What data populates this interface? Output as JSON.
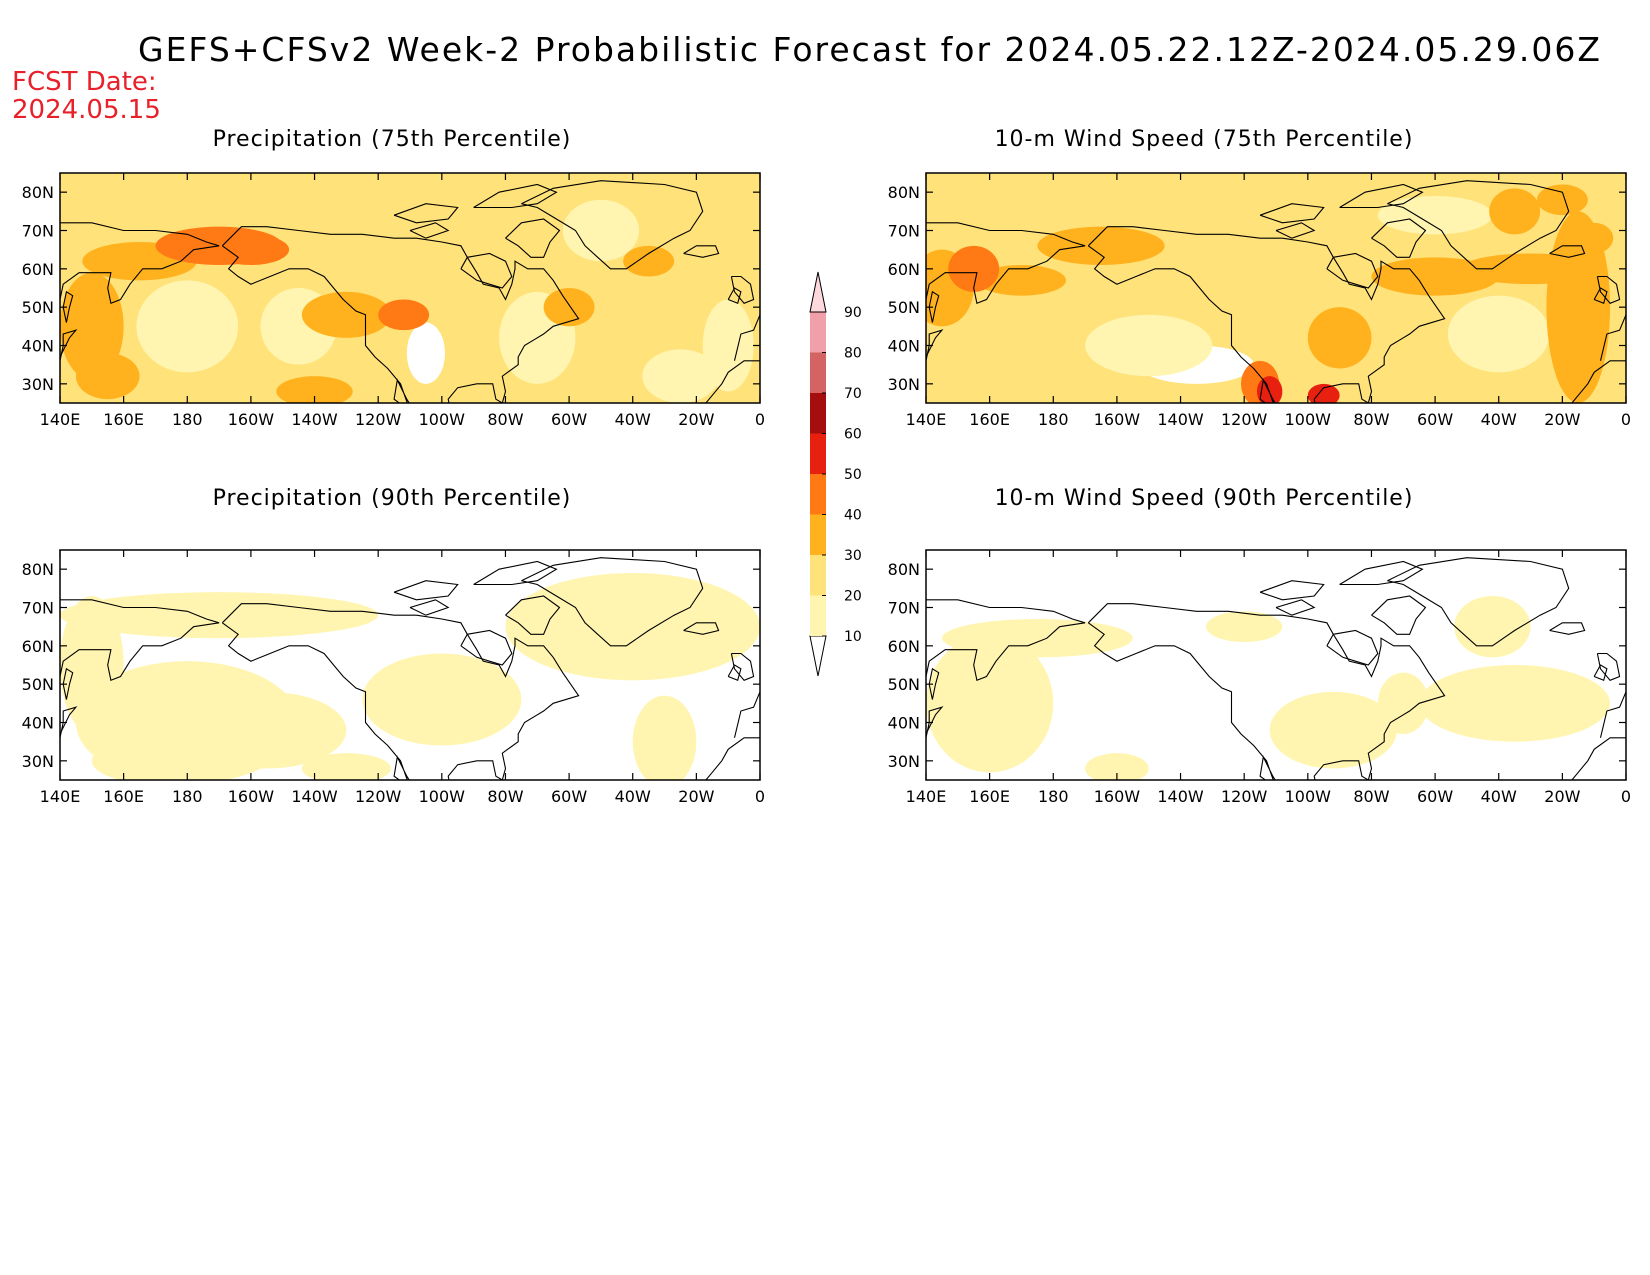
{
  "header": {
    "title": "GEFS+CFSv2 Week-2 Probabilistic Forecast for 2024.05.22.12Z-2024.05.29.06Z",
    "fcst_label": "FCST Date:",
    "fcst_date": "2024.05.15"
  },
  "panels": [
    {
      "title": "Precipitation (75th Percentile)",
      "field": "precip75"
    },
    {
      "title": "10-m Wind Speed (75th Percentile)",
      "field": "wind75"
    },
    {
      "title": "Precipitation (90th Percentile)",
      "field": "precip90"
    },
    {
      "title": "10-m Wind Speed (90th Percentile)",
      "field": "wind90"
    }
  ],
  "axes": {
    "lat_labels": [
      "30N",
      "40N",
      "50N",
      "60N",
      "70N",
      "80N"
    ],
    "lat_values": [
      30,
      40,
      50,
      60,
      70,
      80
    ],
    "lon_labels": [
      "140E",
      "160E",
      "180",
      "160W",
      "140W",
      "120W",
      "100W",
      "80W",
      "60W",
      "40W",
      "20W",
      "0"
    ],
    "lon_values": [
      140,
      160,
      180,
      200,
      220,
      240,
      260,
      280,
      300,
      320,
      340,
      360
    ],
    "lon_range": [
      140,
      360
    ],
    "lat_range": [
      25,
      85
    ]
  },
  "colorbar": {
    "levels": [
      "10",
      "20",
      "30",
      "40",
      "50",
      "60",
      "70",
      "80",
      "90"
    ],
    "colors": [
      "#ffffff",
      "#fff5b0",
      "#ffe27a",
      "#ffb21e",
      "#ff7a14",
      "#e82010",
      "#a50e0e",
      "#d46464",
      "#f0a0a8",
      "#fdd8dc"
    ]
  },
  "colors": {
    "land_outline": "#000000",
    "frame": "#000000"
  }
}
